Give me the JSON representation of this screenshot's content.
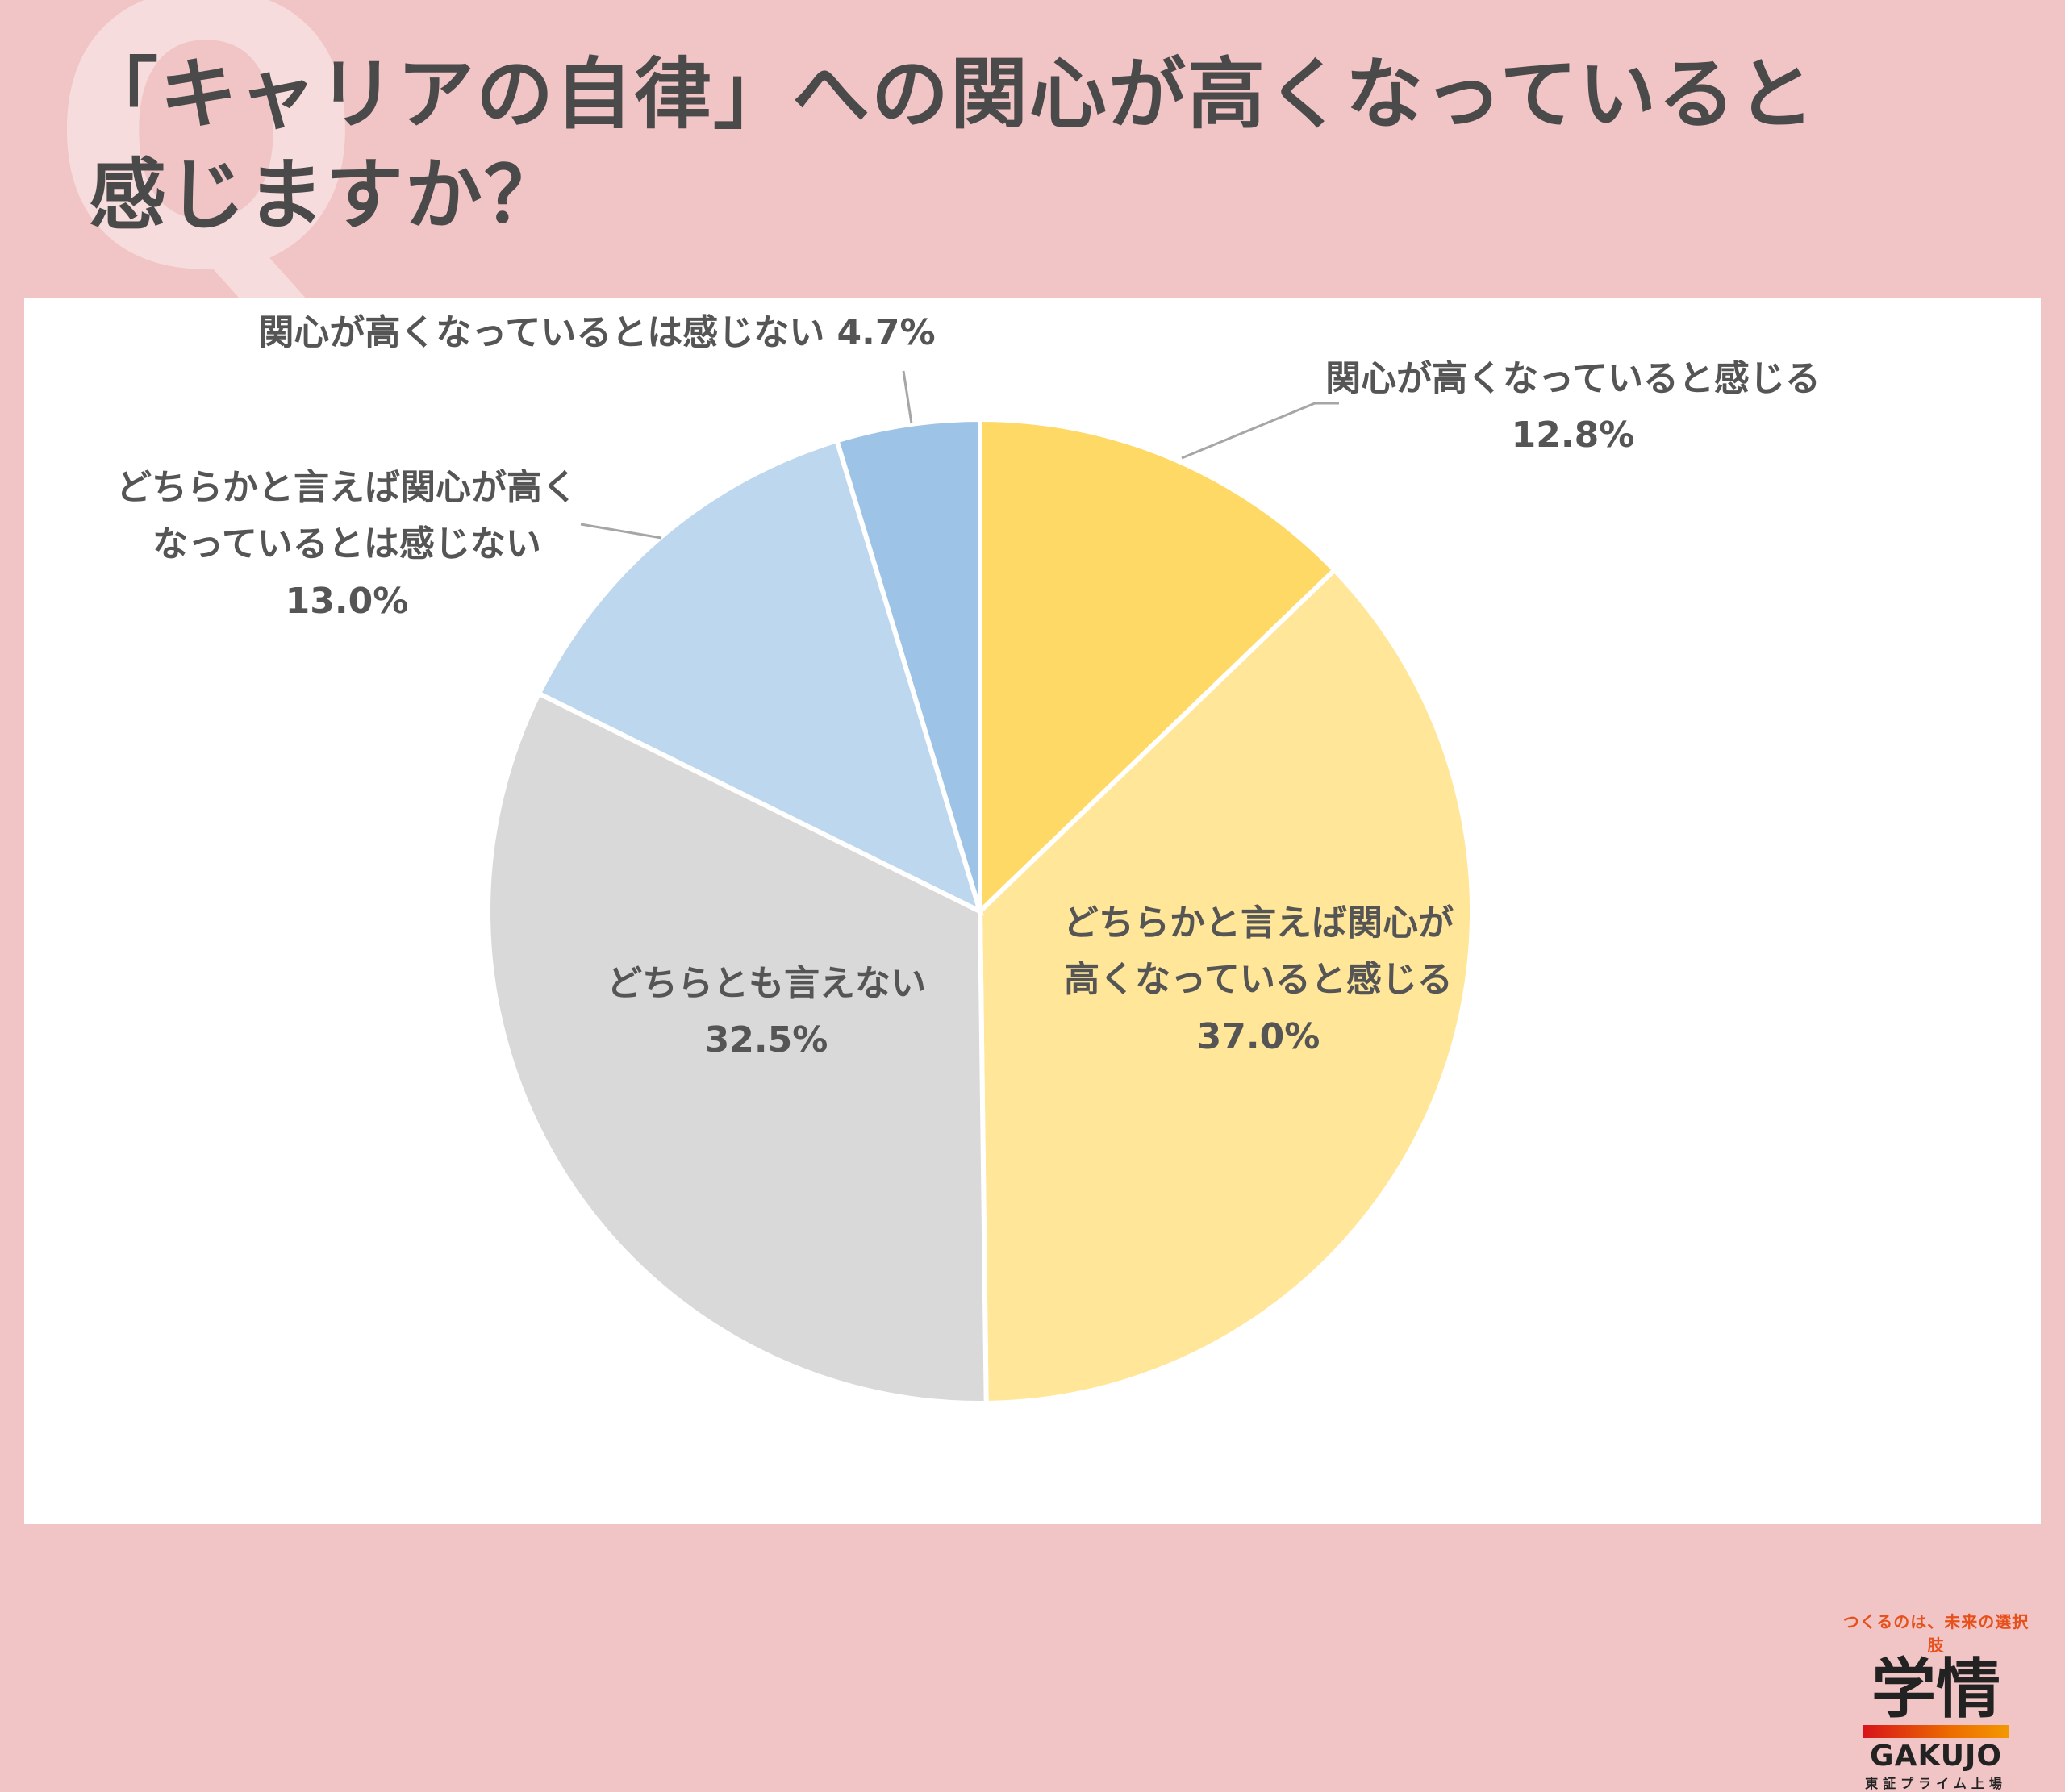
{
  "header": {
    "title_line1": "「キャリアの自律」への関心が高くなっていると",
    "title_line2": "感じますか？",
    "q_mark": "Q"
  },
  "chart_data": {
    "type": "pie",
    "start_angle_deg": 0,
    "direction": "clockwise",
    "slices": [
      {
        "label": "関心が高くなっていると感じる",
        "value": 12.8,
        "value_label": "12.8%",
        "color": "#ffd966"
      },
      {
        "label": "どちらかと言えば関心が高くなっていると感じる",
        "value": 37.0,
        "value_label": "37.0%",
        "color": "#ffe699"
      },
      {
        "label": "どちらとも言えない",
        "value": 32.5,
        "value_label": "32.5%",
        "color": "#d9d9d9"
      },
      {
        "label": "どちらかと言えば関心が高くなっているとは感じない",
        "value": 13.0,
        "value_label": "13.0%",
        "color": "#bdd7ee"
      },
      {
        "label": "関心が高くなっているとは感じない",
        "value": 4.7,
        "value_label": "4.7%",
        "color": "#9dc3e6"
      }
    ]
  },
  "labels": {
    "s1_line1": "関心が高くなっていると感じる",
    "s1_value": "12.8%",
    "s2_line1": "どちらかと言えば関心が",
    "s2_line2": "高くなっていると感じる",
    "s2_value": "37.0%",
    "s3_line1": "どちらとも言えない",
    "s3_value": "32.5%",
    "s4_line1": "どちらかと言えば関心が高く",
    "s4_line2": "なっているとは感じない",
    "s4_value": "13.0%",
    "s5_line1": "関心が高くなっているとは感じない 4.7%"
  },
  "logo": {
    "tagline": "つくるのは、未来の選択肢",
    "kanji": "学情",
    "english": "GAKUJO",
    "sub": "東証プライム上場"
  }
}
